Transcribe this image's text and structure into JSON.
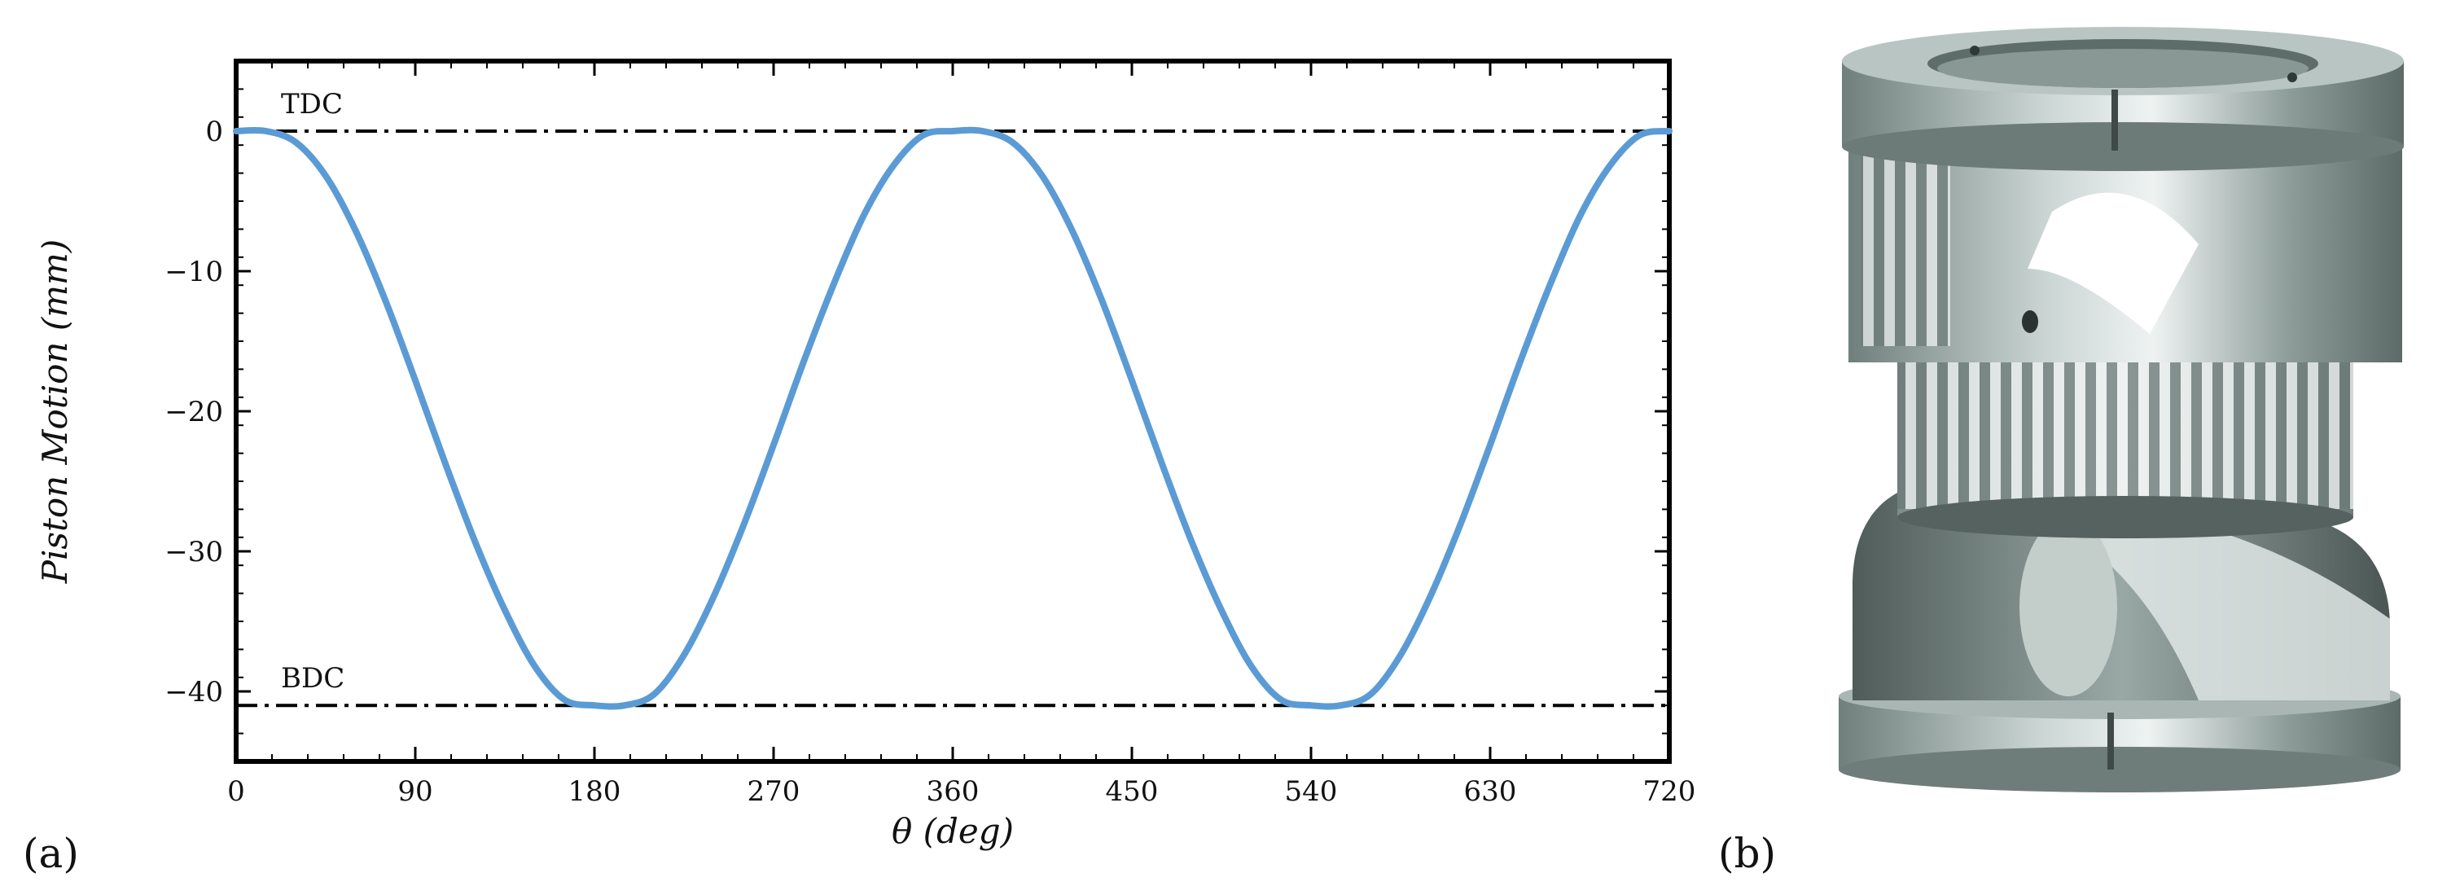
{
  "panels": {
    "a_label": "(a)",
    "b_label": "(b)"
  },
  "chart_data": {
    "type": "line",
    "title": "",
    "xlabel": "θ (deg)",
    "ylabel": "Piston Motion (mm)",
    "xlim": [
      0,
      720
    ],
    "ylim": [
      -45,
      5
    ],
    "x_ticks": [
      0,
      90,
      180,
      270,
      360,
      450,
      540,
      630,
      720
    ],
    "y_ticks": [
      0,
      -10,
      -20,
      -30,
      -40
    ],
    "x_tick_labels": [
      "0",
      "90",
      "180",
      "270",
      "360",
      "450",
      "540",
      "630",
      "720"
    ],
    "y_tick_labels": [
      "0",
      "−10",
      "−20",
      "−30",
      "−40"
    ],
    "grid": false,
    "legend": "none",
    "series": [
      {
        "color": "#5b9bd5",
        "x": [
          0,
          15,
          30,
          45,
          60,
          75,
          90,
          105,
          120,
          135,
          150,
          165,
          180,
          195,
          210,
          225,
          240,
          255,
          270,
          285,
          300,
          315,
          330,
          345,
          360,
          375,
          390,
          405,
          420,
          435,
          450,
          465,
          480,
          495,
          510,
          525,
          540,
          555,
          570,
          585,
          600,
          615,
          630,
          645,
          660,
          675,
          690,
          705,
          720
        ],
        "y": [
          0,
          0,
          -0.8,
          -3.2,
          -7.1,
          -12.1,
          -17.8,
          -23.7,
          -29.3,
          -34.2,
          -38.2,
          -40.6,
          -41,
          -41,
          -40.2,
          -37.4,
          -33.2,
          -28.1,
          -22.4,
          -16.5,
          -11.0,
          -6.1,
          -2.5,
          -0.3,
          0,
          0,
          -0.8,
          -3.2,
          -7.1,
          -12.1,
          -17.8,
          -23.7,
          -29.3,
          -34.2,
          -38.2,
          -40.6,
          -41,
          -41,
          -40.2,
          -37.4,
          -33.2,
          -28.1,
          -22.4,
          -16.5,
          -11.0,
          -6.1,
          -2.5,
          -0.3,
          0
        ]
      }
    ],
    "reference_lines": [
      {
        "y": 0,
        "label": "TDC",
        "style": "dash-dot"
      },
      {
        "y": -41,
        "label": "BDC",
        "style": "dash-dot"
      }
    ]
  }
}
